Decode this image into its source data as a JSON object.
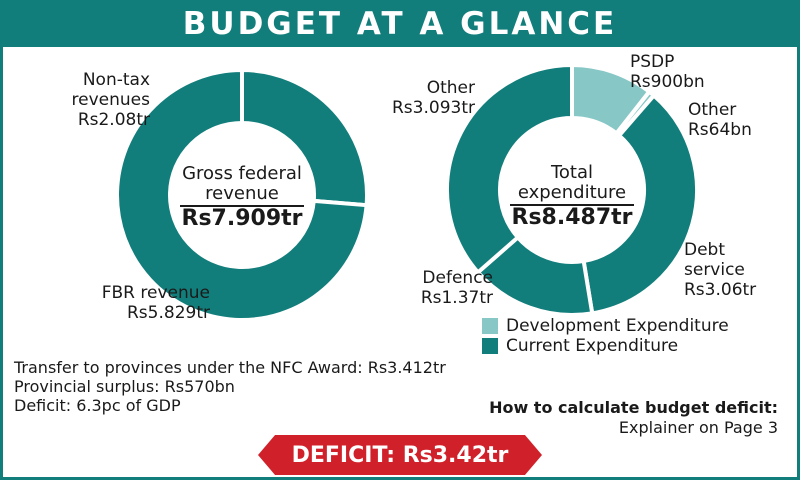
{
  "header": {
    "title": "BUDGET AT A GLANCE"
  },
  "colors": {
    "teal": "#127e7b",
    "light_teal": "#87c7c6",
    "red": "#d0202a"
  },
  "chart_data": [
    {
      "type": "pie",
      "title": "Gross federal revenue",
      "total": "Rs7.909tr",
      "slices": [
        {
          "name": "Non-tax revenues",
          "value_label": "Rs2.08tr",
          "value": 2.08,
          "category": "current"
        },
        {
          "name": "FBR revenue",
          "value_label": "Rs5.829tr",
          "value": 5.829,
          "category": "current"
        }
      ],
      "label_lines": {
        "nontax": [
          "Non-tax",
          "revenues",
          "Rs2.08tr"
        ],
        "fbr": [
          "FBR revenue",
          "Rs5.829tr"
        ]
      }
    },
    {
      "type": "pie",
      "title": "Total expenditure",
      "total": "Rs8.487tr",
      "slices": [
        {
          "name": "PSDP",
          "value_label": "Rs900bn",
          "value": 0.9,
          "category": "development"
        },
        {
          "name": "Other",
          "value_label": "Rs64bn",
          "value": 0.064,
          "category": "development"
        },
        {
          "name": "Debt service",
          "value_label": "Rs3.06tr",
          "value": 3.06,
          "category": "current"
        },
        {
          "name": "Defence",
          "value_label": "Rs1.37tr",
          "value": 1.37,
          "category": "current"
        },
        {
          "name": "Other",
          "value_label": "Rs3.093tr",
          "value": 3.093,
          "category": "current"
        }
      ],
      "label_lines": {
        "psdp": [
          "PSDP",
          "Rs900bn"
        ],
        "other_small": [
          "Other",
          "Rs64bn"
        ],
        "debt": [
          "Debt",
          "service",
          "Rs3.06tr"
        ],
        "defence": [
          "Defence",
          "Rs1.37tr"
        ],
        "other_big": [
          "Other",
          "Rs3.093tr"
        ]
      },
      "legend": [
        {
          "label": "Development Expenditure",
          "category": "development"
        },
        {
          "label": "Current Expenditure",
          "category": "current"
        }
      ]
    }
  ],
  "center_titles": {
    "revenue": [
      "Gross federal",
      "revenue"
    ],
    "expenditure": [
      "Total",
      "expenditure"
    ]
  },
  "notes": [
    "Transfer to provinces under the NFC Award: Rs3.412tr",
    "Provincial surplus: Rs570bn",
    "Deficit: 6.3pc of GDP"
  ],
  "explainer": {
    "heading": "How to calculate budget deficit:",
    "text": "Explainer on Page 3"
  },
  "deficit_banner": "DEFICIT: Rs3.42tr"
}
